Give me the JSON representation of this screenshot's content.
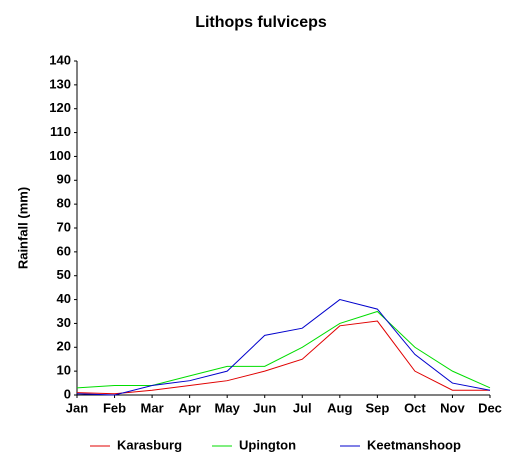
{
  "chart_data": {
    "type": "line",
    "title": "Lithops fulviceps",
    "y_label": "Rainfall (mm)",
    "categories": [
      "Jan",
      "Feb",
      "Mar",
      "Apr",
      "May",
      "Jun",
      "Jul",
      "Aug",
      "Sep",
      "Oct",
      "Nov",
      "Dec"
    ],
    "series": [
      {
        "name": "Karasburg",
        "color": "#e00000",
        "values": [
          1,
          0.5,
          2,
          4,
          6,
          10,
          15,
          29,
          31,
          10,
          2,
          2
        ]
      },
      {
        "name": "Upington",
        "color": "#00dd00",
        "values": [
          3,
          4,
          4,
          8,
          12,
          12,
          20,
          30,
          35,
          20,
          10,
          3
        ]
      },
      {
        "name": "Keetmanshoop",
        "color": "#0000cc",
        "values": [
          0.5,
          0,
          4,
          6,
          10,
          25,
          28,
          40,
          36,
          17,
          5,
          2
        ]
      }
    ],
    "ylim": [
      0,
      140
    ],
    "yticks": [
      0,
      10,
      20,
      30,
      40,
      50,
      60,
      70,
      80,
      90,
      100,
      110,
      120,
      130,
      140
    ],
    "grid": false,
    "legend": "bottom"
  }
}
